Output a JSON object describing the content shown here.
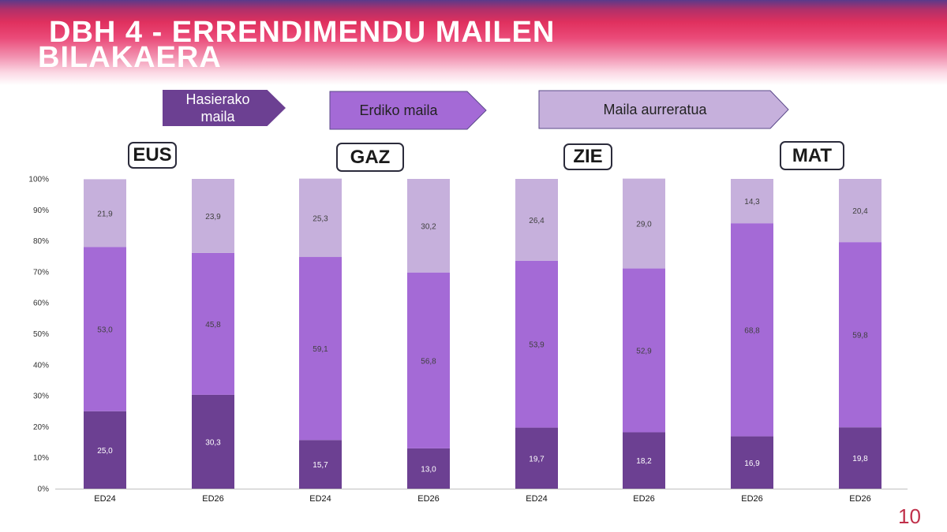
{
  "title": {
    "line1": "DBH 4 - ERRENDIMENDU MAILEN",
    "line2": "BILAKAERA"
  },
  "levels": [
    {
      "label": "Hasierako maila",
      "color": "#6c4092"
    },
    {
      "label": "Erdiko maila",
      "color": "#a46ad6"
    },
    {
      "label": "Maila aurreratua",
      "color": "#c6b0dc"
    }
  ],
  "subjects": [
    "EUS",
    "GAZ",
    "ZIE",
    "MAT"
  ],
  "page_number": "10",
  "chart_data": {
    "type": "bar",
    "stacked": true,
    "categories": [
      "ED24",
      "ED26",
      "ED24",
      "ED26",
      "ED24",
      "ED26",
      "ED26",
      "ED26"
    ],
    "groups": [
      "EUS",
      "EUS",
      "GAZ",
      "GAZ",
      "ZIE",
      "ZIE",
      "MAT",
      "MAT"
    ],
    "series": [
      {
        "name": "Hasierako maila",
        "color": "#6c4092",
        "values": [
          25.0,
          30.3,
          15.7,
          13.0,
          19.7,
          18.2,
          16.9,
          19.8
        ],
        "labels": [
          "25,0",
          "30,3",
          "15,7",
          "13,0",
          "19,7",
          "18,2",
          "16,9",
          "19,8"
        ]
      },
      {
        "name": "Erdiko maila",
        "color": "#a46ad6",
        "values": [
          53.0,
          45.8,
          59.1,
          56.8,
          53.9,
          52.9,
          68.8,
          59.8
        ],
        "labels": [
          "53,0",
          "45,8",
          "59,1",
          "56,8",
          "53,9",
          "52,9",
          "68,8",
          "59,8"
        ]
      },
      {
        "name": "Maila aurreratua",
        "color": "#c6b0dc",
        "values": [
          21.9,
          23.9,
          25.3,
          30.2,
          26.4,
          29.0,
          14.3,
          20.4
        ],
        "labels": [
          "21,9",
          "23,9",
          "25,3",
          "30,2",
          "26,4",
          "29,0",
          "14,3",
          "20,4"
        ]
      }
    ],
    "yticks": [
      "0%",
      "10%",
      "20%",
      "30%",
      "40%",
      "50%",
      "60%",
      "70%",
      "80%",
      "90%",
      "100%"
    ],
    "ylim": [
      0,
      100
    ],
    "grid": false,
    "legend": "top (arrow shapes)"
  }
}
